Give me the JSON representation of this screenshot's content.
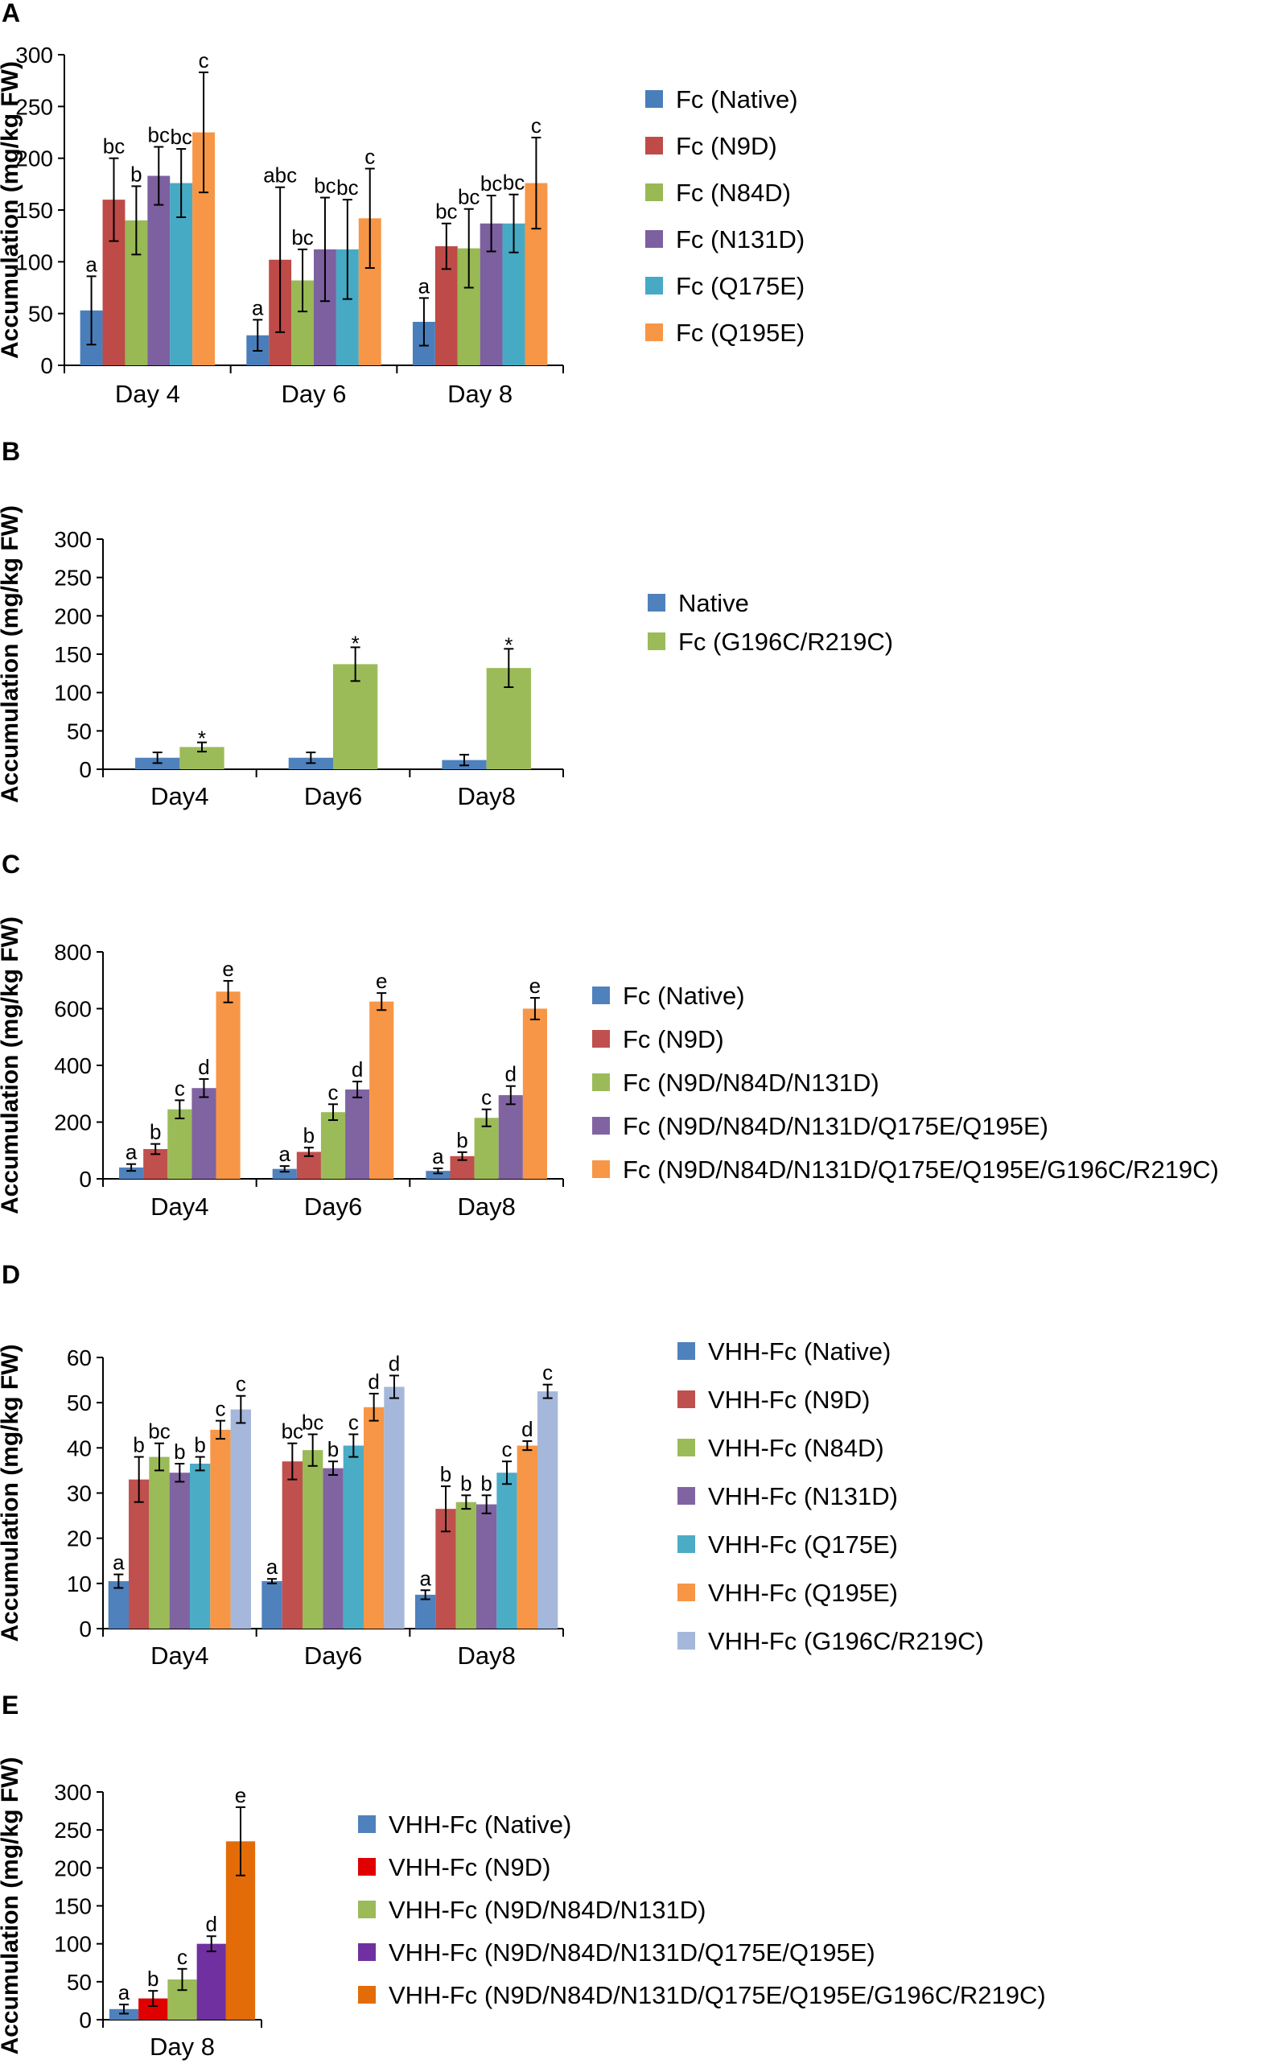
{
  "chart_data": [
    {
      "panel": "A",
      "type": "bar",
      "ylabel": "Accumulation (mg/kg FW)",
      "ylim": [
        0,
        300
      ],
      "yticks": [
        0,
        50,
        100,
        150,
        200,
        250,
        300
      ],
      "categories": [
        "Day 4",
        "Day 6",
        "Day 8"
      ],
      "series": [
        {
          "name": "Fc (Native)",
          "color": "#4a7ebb",
          "values": [
            53,
            29,
            42
          ],
          "errors": [
            33,
            15,
            23
          ],
          "labels": [
            "a",
            "a",
            "a"
          ]
        },
        {
          "name": "Fc (N9D)",
          "color": "#be4b48",
          "values": [
            160,
            102,
            115
          ],
          "errors": [
            40,
            70,
            22
          ],
          "labels": [
            "bc",
            "abc",
            "bc"
          ]
        },
        {
          "name": "Fc (N84D)",
          "color": "#98b954",
          "values": [
            140,
            82,
            113
          ],
          "errors": [
            33,
            30,
            38
          ],
          "labels": [
            "b",
            "bc",
            "bc"
          ]
        },
        {
          "name": "Fc (N131D)",
          "color": "#7d60a0",
          "values": [
            183,
            112,
            137
          ],
          "errors": [
            28,
            50,
            27
          ],
          "labels": [
            "bc",
            "bc",
            "bc"
          ]
        },
        {
          "name": "Fc (Q175E)",
          "color": "#46aac5",
          "values": [
            176,
            112,
            137
          ],
          "errors": [
            33,
            48,
            28
          ],
          "labels": [
            "bc",
            "bc",
            "bc"
          ]
        },
        {
          "name": "Fc (Q195E)",
          "color": "#f79646",
          "values": [
            225,
            142,
            176
          ],
          "errors": [
            58,
            48,
            44
          ],
          "labels": [
            "c",
            "c",
            "c"
          ]
        }
      ]
    },
    {
      "panel": "B",
      "type": "bar",
      "ylabel": "Accumulation (mg/kg FW)",
      "ylim": [
        0,
        300
      ],
      "yticks": [
        0,
        50,
        100,
        150,
        200,
        250,
        300
      ],
      "categories": [
        "Day4",
        "Day6",
        "Day8"
      ],
      "series": [
        {
          "name": "Native",
          "color": "#4f81bd",
          "values": [
            15,
            15,
            12
          ],
          "errors": [
            7,
            7,
            7
          ],
          "labels": [
            "",
            "",
            ""
          ]
        },
        {
          "name": "Fc (G196C/R219C)",
          "color": "#9bbb59",
          "values": [
            29,
            137,
            132
          ],
          "errors": [
            6,
            22,
            25
          ],
          "labels": [
            "*",
            "*",
            "*"
          ]
        }
      ]
    },
    {
      "panel": "C",
      "type": "bar",
      "ylabel": "Accumulation (mg/kg FW)",
      "ylim": [
        0,
        800
      ],
      "yticks": [
        0,
        200,
        400,
        600,
        800
      ],
      "categories": [
        "Day4",
        "Day6",
        "Day8"
      ],
      "series": [
        {
          "name": "Fc (Native)",
          "color": "#4f81bd",
          "values": [
            40,
            35,
            28
          ],
          "errors": [
            12,
            10,
            9
          ],
          "labels": [
            "a",
            "a",
            "a"
          ]
        },
        {
          "name": "Fc (N9D)",
          "color": "#c0504d",
          "values": [
            105,
            95,
            80
          ],
          "errors": [
            18,
            15,
            14
          ],
          "labels": [
            "b",
            "b",
            "b"
          ]
        },
        {
          "name": "Fc (N9D/N84D/N131D)",
          "color": "#9bbb59",
          "values": [
            245,
            235,
            215
          ],
          "errors": [
            32,
            28,
            30
          ],
          "labels": [
            "c",
            "c",
            "c"
          ]
        },
        {
          "name": "Fc (N9D/N84D/N131D/Q175E/Q195E)",
          "color": "#8064a2",
          "values": [
            320,
            315,
            295
          ],
          "errors": [
            32,
            28,
            32
          ],
          "labels": [
            "d",
            "d",
            "d"
          ]
        },
        {
          "name": "Fc (N9D/N84D/N131D/Q175E/Q195E/G196C/R219C)",
          "color": "#f79646",
          "values": [
            660,
            625,
            600
          ],
          "errors": [
            38,
            30,
            38
          ],
          "labels": [
            "e",
            "e",
            "e"
          ]
        }
      ]
    },
    {
      "panel": "D",
      "type": "bar",
      "ylabel": "Accumulation (mg/kg FW)",
      "ylim": [
        0,
        60
      ],
      "yticks": [
        0,
        10,
        20,
        30,
        40,
        50,
        60
      ],
      "categories": [
        "Day4",
        "Day6",
        "Day8"
      ],
      "series": [
        {
          "name": "VHH-Fc (Native)",
          "color": "#4f81bd",
          "values": [
            10.5,
            10.5,
            7.5
          ],
          "errors": [
            1.5,
            0.5,
            1.0
          ],
          "labels": [
            "a",
            "a",
            "a"
          ]
        },
        {
          "name": "VHH-Fc (N9D)",
          "color": "#c0504d",
          "values": [
            33,
            37,
            26.5
          ],
          "errors": [
            5,
            4,
            5
          ],
          "labels": [
            "b",
            "bc",
            "b"
          ]
        },
        {
          "name": "VHH-Fc (N84D)",
          "color": "#9bbb59",
          "values": [
            38,
            39.5,
            28
          ],
          "errors": [
            3,
            3.5,
            1.5
          ],
          "labels": [
            "bc",
            "bc",
            "b"
          ]
        },
        {
          "name": "VHH-Fc (N131D)",
          "color": "#8064a2",
          "values": [
            34.5,
            35.5,
            27.5
          ],
          "errors": [
            2,
            1.5,
            2
          ],
          "labels": [
            "b",
            "b",
            "b"
          ]
        },
        {
          "name": "VHH-Fc (Q175E)",
          "color": "#4bacc6",
          "values": [
            36.5,
            40.5,
            34.5
          ],
          "errors": [
            1.5,
            2.5,
            2.5
          ],
          "labels": [
            "b",
            "c",
            "c"
          ]
        },
        {
          "name": "VHH-Fc (Q195E)",
          "color": "#f79646",
          "values": [
            44,
            49,
            40.5
          ],
          "errors": [
            2,
            3,
            1
          ],
          "labels": [
            "c",
            "d",
            "d"
          ]
        },
        {
          "name": "VHH-Fc (G196C/R219C)",
          "color": "#a5b7db",
          "values": [
            48.5,
            53.5,
            52.5
          ],
          "errors": [
            3,
            2.5,
            1.5
          ],
          "labels": [
            "c",
            "d",
            "c"
          ]
        }
      ]
    },
    {
      "panel": "E",
      "type": "bar",
      "ylabel": "Accumulation (mg/kg FW)",
      "ylim": [
        0,
        300
      ],
      "yticks": [
        0,
        50,
        100,
        150,
        200,
        250,
        300
      ],
      "categories": [
        "Day 8"
      ],
      "series": [
        {
          "name": "VHH-Fc (Native)",
          "color": "#4f81bd",
          "values": [
            14
          ],
          "errors": [
            6
          ],
          "labels": [
            "a"
          ]
        },
        {
          "name": "VHH-Fc (N9D)",
          "color": "#e00000",
          "values": [
            28
          ],
          "errors": [
            10
          ],
          "labels": [
            "b"
          ]
        },
        {
          "name": "VHH-Fc (N9D/N84D/N131D)",
          "color": "#9bbb59",
          "values": [
            53
          ],
          "errors": [
            14
          ],
          "labels": [
            "c"
          ]
        },
        {
          "name": "VHH-Fc (N9D/N84D/N131D/Q175E/Q195E)",
          "color": "#7030a0",
          "values": [
            100
          ],
          "errors": [
            10
          ],
          "labels": [
            "d"
          ]
        },
        {
          "name": "VHH-Fc (N9D/N84D/N131D/Q175E/Q195E/G196C/R219C)",
          "color": "#e36c09",
          "values": [
            235
          ],
          "errors": [
            45
          ],
          "labels": [
            "e"
          ]
        }
      ]
    }
  ]
}
